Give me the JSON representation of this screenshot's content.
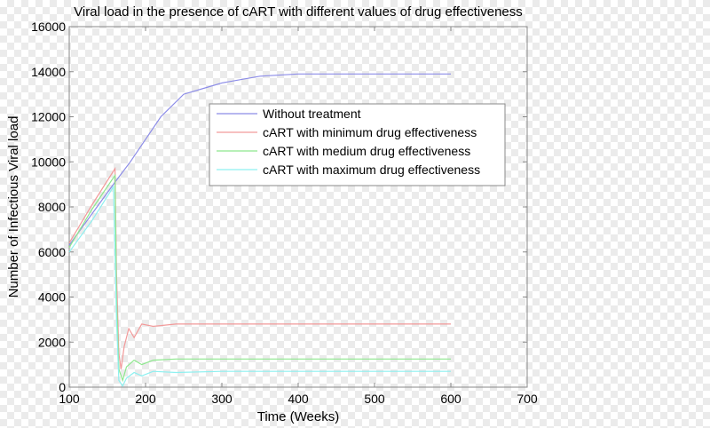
{
  "chart_data": {
    "type": "line",
    "title": "Viral load in the presence of cART with different values of drug effectiveness",
    "xlabel": "Time (Weeks)",
    "ylabel": "Number of Infectious Viral load",
    "xlim": [
      100,
      700
    ],
    "ylim": [
      0,
      16000
    ],
    "xticks": [
      "100",
      "200",
      "300",
      "400",
      "500",
      "600",
      "700"
    ],
    "yticks": [
      "0",
      "2000",
      "4000",
      "6000",
      "8000",
      "10000",
      "12000",
      "14000",
      "16000"
    ],
    "grid": false,
    "legend_position": "top-right",
    "series": [
      {
        "name": "Without treatment",
        "color": "#8c8ce8",
        "x": [
          100,
          130,
          160,
          180,
          200,
          220,
          250,
          280,
          300,
          350,
          400,
          450,
          500,
          550,
          600
        ],
        "y": [
          6300,
          7700,
          9100,
          10000,
          11000,
          12000,
          13000,
          13300,
          13500,
          13800,
          13900,
          13900,
          13900,
          13900,
          13900
        ]
      },
      {
        "name": "cART with minimum drug effectiveness",
        "color": "#f29a9a",
        "x": [
          100,
          130,
          160,
          162,
          165,
          168,
          172,
          178,
          185,
          195,
          210,
          240,
          300,
          400,
          500,
          600
        ],
        "y": [
          6400,
          8100,
          9700,
          5000,
          1500,
          800,
          1800,
          2600,
          2200,
          2800,
          2700,
          2800,
          2800,
          2800,
          2800,
          2800
        ]
      },
      {
        "name": "cART with medium drug effectiveness",
        "color": "#8ee88e",
        "x": [
          100,
          130,
          160,
          162,
          165,
          170,
          175,
          185,
          195,
          210,
          240,
          300,
          400,
          500,
          600
        ],
        "y": [
          6200,
          7900,
          9400,
          4000,
          800,
          300,
          900,
          1200,
          1000,
          1200,
          1250,
          1250,
          1250,
          1250,
          1250
        ]
      },
      {
        "name": "cART with maximum drug effectiveness",
        "color": "#8ef0f0",
        "x": [
          100,
          130,
          158,
          162,
          165,
          170,
          175,
          185,
          195,
          210,
          240,
          300,
          400,
          500,
          600
        ],
        "y": [
          6000,
          7400,
          8900,
          3000,
          300,
          50,
          400,
          650,
          500,
          700,
          650,
          700,
          700,
          700,
          700
        ]
      }
    ]
  }
}
